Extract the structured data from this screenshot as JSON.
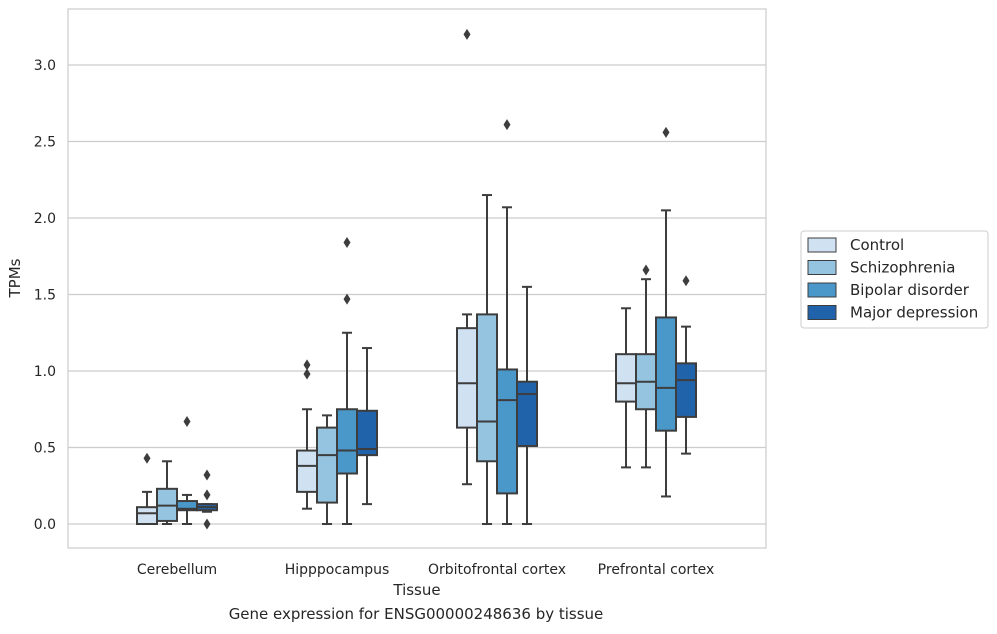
{
  "caption": "Gene expression for ENSG00000248636 by tissue",
  "chart_data": {
    "type": "box",
    "xlabel": "Tissue",
    "ylabel": "TPMs",
    "ylim": [
      -0.15,
      3.38
    ],
    "yticks": [
      0.0,
      0.5,
      1.0,
      1.5,
      2.0,
      2.5,
      3.0
    ],
    "ytick_labels": [
      "0.0",
      "0.5",
      "1.0",
      "1.5",
      "2.0",
      "2.5",
      "3.0"
    ],
    "grid": "horizontal",
    "legend_position": "right",
    "categories": [
      "Cerebellum",
      "Hipppocampus",
      "Orbitofrontal cortex",
      "Prefrontal cortex"
    ],
    "series": [
      {
        "name": "Control",
        "color": "#d0e1f2",
        "boxes": [
          {
            "whislo": 0.0,
            "q1": 0.0,
            "med": 0.07,
            "q3": 0.11,
            "whishi": 0.21,
            "fliers": [
              0.43
            ]
          },
          {
            "whislo": 0.1,
            "q1": 0.21,
            "med": 0.38,
            "q3": 0.48,
            "whishi": 0.75,
            "fliers": [
              0.98,
              1.04
            ]
          },
          {
            "whislo": 0.26,
            "q1": 0.63,
            "med": 0.92,
            "q3": 1.28,
            "whishi": 1.37,
            "fliers": [
              3.2
            ]
          },
          {
            "whislo": 0.37,
            "q1": 0.8,
            "med": 0.92,
            "q3": 1.11,
            "whishi": 1.41,
            "fliers": []
          }
        ]
      },
      {
        "name": "Schizophrenia",
        "color": "#94c4df",
        "boxes": [
          {
            "whislo": 0.0,
            "q1": 0.02,
            "med": 0.12,
            "q3": 0.23,
            "whishi": 0.41,
            "fliers": []
          },
          {
            "whislo": 0.0,
            "q1": 0.14,
            "med": 0.45,
            "q3": 0.63,
            "whishi": 0.71,
            "fliers": []
          },
          {
            "whislo": 0.0,
            "q1": 0.41,
            "med": 0.67,
            "q3": 1.37,
            "whishi": 2.15,
            "fliers": []
          },
          {
            "whislo": 0.37,
            "q1": 0.75,
            "med": 0.93,
            "q3": 1.11,
            "whishi": 1.6,
            "fliers": [
              1.66
            ]
          }
        ]
      },
      {
        "name": "Bipolar disorder",
        "color": "#4a98c9",
        "boxes": [
          {
            "whislo": 0.0,
            "q1": 0.09,
            "med": 0.1,
            "q3": 0.15,
            "whishi": 0.19,
            "fliers": [
              0.67
            ]
          },
          {
            "whislo": 0.0,
            "q1": 0.33,
            "med": 0.48,
            "q3": 0.75,
            "whishi": 1.25,
            "fliers": [
              1.47,
              1.84
            ]
          },
          {
            "whislo": 0.0,
            "q1": 0.2,
            "med": 0.81,
            "q3": 1.01,
            "whishi": 2.07,
            "fliers": [
              2.61
            ]
          },
          {
            "whislo": 0.18,
            "q1": 0.61,
            "med": 0.89,
            "q3": 1.35,
            "whishi": 2.05,
            "fliers": [
              2.56
            ]
          }
        ]
      },
      {
        "name": "Major depression",
        "color": "#2163aa",
        "boxes": [
          {
            "whislo": 0.08,
            "q1": 0.09,
            "med": 0.11,
            "q3": 0.13,
            "whishi": 0.13,
            "fliers": [
              0.0,
              0.19,
              0.32
            ]
          },
          {
            "whislo": 0.13,
            "q1": 0.45,
            "med": 0.49,
            "q3": 0.74,
            "whishi": 1.15,
            "fliers": []
          },
          {
            "whislo": 0.0,
            "q1": 0.51,
            "med": 0.85,
            "q3": 0.93,
            "whishi": 1.55,
            "fliers": []
          },
          {
            "whislo": 0.46,
            "q1": 0.7,
            "med": 0.94,
            "q3": 1.05,
            "whishi": 1.29,
            "fliers": [
              1.59
            ]
          }
        ]
      }
    ]
  }
}
